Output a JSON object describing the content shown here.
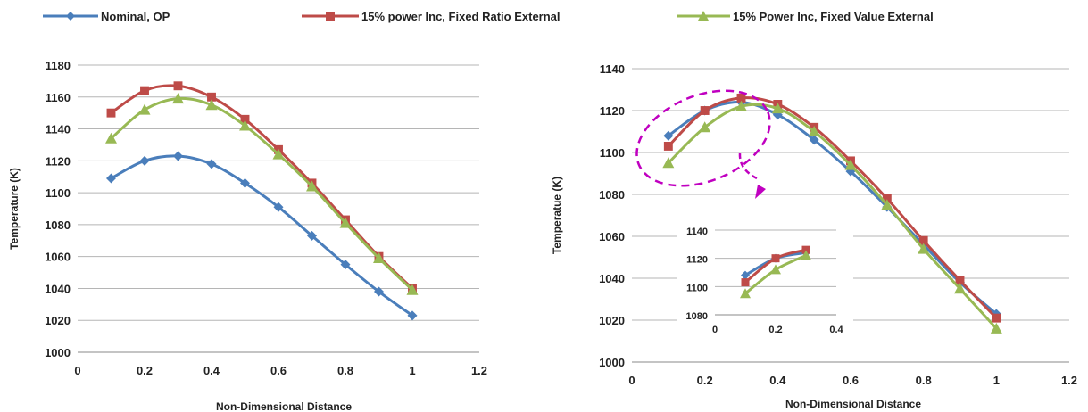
{
  "colors": {
    "nominal": "#4a7ebb",
    "fixed_ratio": "#be4b48",
    "fixed_value": "#98b954",
    "annotation": "#c000c0",
    "grid": "#b5b5b5"
  },
  "legend": {
    "placement": "top",
    "entries": [
      {
        "label": "Nominal, OP",
        "marker": "diamond"
      },
      {
        "label": "15% power Inc, Fixed Ratio External",
        "marker": "square"
      },
      {
        "label": "15% Power Inc, Fixed Value External",
        "marker": "triangle"
      }
    ]
  },
  "chart_data": [
    {
      "type": "line",
      "xlabel": "Non-Dimensional Distance",
      "ylabel": "Temperature (K)",
      "xlim": [
        0,
        1.2
      ],
      "ylim": [
        1000,
        1180
      ],
      "xticks": [
        0,
        0.2,
        0.4,
        0.6,
        0.8,
        1,
        1.2
      ],
      "xtick_labels": [
        "0",
        "0.2",
        "0.4",
        "0.6",
        "0.8",
        "1",
        "1.2"
      ],
      "yticks": [
        1000,
        1020,
        1040,
        1060,
        1080,
        1100,
        1120,
        1140,
        1160,
        1180
      ],
      "ytick_labels": [
        "1000",
        "1020",
        "1040",
        "1060",
        "1080",
        "1100",
        "1120",
        "1140",
        "1160",
        "1180"
      ],
      "grid": "horizontal",
      "x": [
        0.1,
        0.2,
        0.3,
        0.4,
        0.5,
        0.6,
        0.7,
        0.8,
        0.9,
        1.0
      ],
      "series": [
        {
          "name": "Nominal, OP",
          "values": [
            1109,
            1120,
            1123,
            1118,
            1106,
            1091,
            1073,
            1055,
            1038,
            1023
          ]
        },
        {
          "name": "15% power Inc, Fixed Ratio External",
          "values": [
            1150,
            1164,
            1167,
            1160,
            1146,
            1127,
            1106,
            1083,
            1060,
            1040
          ]
        },
        {
          "name": "15% Power Inc, Fixed Value External",
          "values": [
            1134,
            1152,
            1159,
            1155,
            1142,
            1124,
            1104,
            1081,
            1059,
            1039
          ]
        }
      ]
    },
    {
      "type": "line",
      "xlabel": "Non-Dimensional Distance",
      "ylabel": "Temperatue (K)",
      "xlim": [
        0,
        1.2
      ],
      "ylim": [
        1000,
        1140
      ],
      "xticks": [
        0,
        0.2,
        0.4,
        0.6,
        0.8,
        1,
        1.2
      ],
      "xtick_labels": [
        "0",
        "0.2",
        "0.4",
        "0.6",
        "0.8",
        "1",
        "1.2"
      ],
      "yticks": [
        1000,
        1020,
        1040,
        1060,
        1080,
        1100,
        1120,
        1140
      ],
      "ytick_labels": [
        "1000",
        "1020",
        "1040",
        "1060",
        "1080",
        "1100",
        "1120",
        "1140"
      ],
      "grid": "horizontal",
      "x": [
        0.1,
        0.2,
        0.3,
        0.4,
        0.5,
        0.6,
        0.7,
        0.8,
        0.9,
        1.0
      ],
      "series": [
        {
          "name": "Nominal, OP",
          "values": [
            1108,
            1120,
            1124,
            1118,
            1106,
            1091,
            1074,
            1056,
            1038,
            1023
          ]
        },
        {
          "name": "15% power Inc, Fixed Ratio External",
          "values": [
            1103,
            1120,
            1126,
            1123,
            1112,
            1096,
            1078,
            1058,
            1039,
            1021
          ]
        },
        {
          "name": "15% Power Inc, Fixed Value External",
          "values": [
            1095,
            1112,
            1122,
            1121,
            1110,
            1094,
            1075,
            1054,
            1035,
            1016
          ]
        }
      ],
      "annotation": "dashed ellipse highlighting x 0.1–0.3 with arrow to inset",
      "inset": {
        "xlim": [
          0,
          0.4
        ],
        "ylim": [
          1080,
          1140
        ],
        "xticks": [
          0,
          0.2,
          0.4
        ],
        "xtick_labels": [
          "0",
          "0.2",
          "0.4"
        ],
        "yticks": [
          1080,
          1100,
          1120,
          1140
        ],
        "ytick_labels": [
          "1080",
          "1100",
          "1120",
          "1140"
        ],
        "x": [
          0.1,
          0.2,
          0.3
        ],
        "series": [
          {
            "name": "Nominal, OP",
            "values": [
              1108,
              1120,
              1124
            ]
          },
          {
            "name": "15% power Inc, Fixed Ratio External",
            "values": [
              1103,
              1120,
              1126
            ]
          },
          {
            "name": "15% Power Inc, Fixed Value External",
            "values": [
              1095,
              1112,
              1122
            ]
          }
        ]
      }
    }
  ]
}
